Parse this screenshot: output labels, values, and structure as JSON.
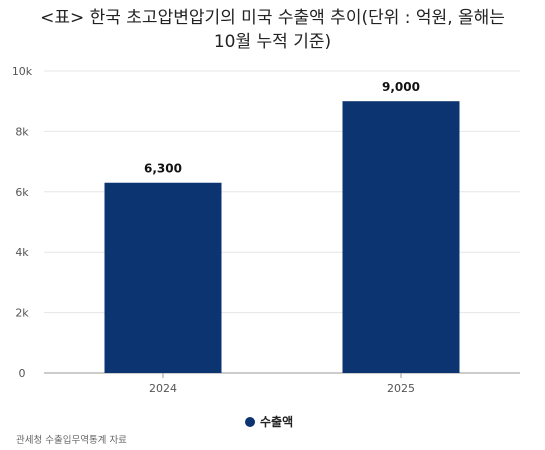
{
  "title_line1": "<표> 한국 초고압변압기의 미국 수출액 추이(단위 : 억원, 올해는",
  "title_line2": "10월 누적 기준)",
  "source": "관세청 수출입무역통계 자료",
  "chart_data": {
    "type": "bar",
    "categories": [
      "2024",
      "2025"
    ],
    "series": [
      {
        "name": "수출액",
        "values": [
          6300,
          9000
        ],
        "labels": [
          "6,300",
          "9,000"
        ],
        "color": "#0b3470"
      }
    ],
    "ylim": [
      0,
      10000
    ],
    "yticks": [
      0,
      2000,
      4000,
      6000,
      8000,
      10000
    ],
    "ytick_labels": [
      "0",
      "2k",
      "4k",
      "6k",
      "8k",
      "10k"
    ],
    "grid": true,
    "legend_position": "bottom-center"
  }
}
